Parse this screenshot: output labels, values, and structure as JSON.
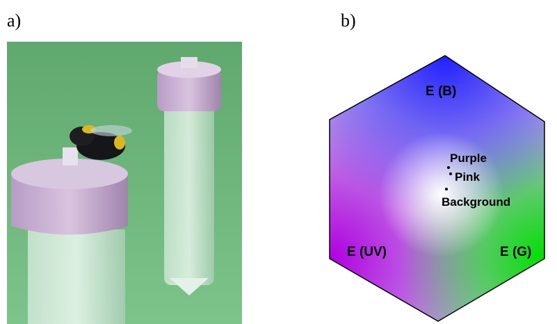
{
  "panels": [
    {
      "label": "a)"
    },
    {
      "label": "b)",
      "axes": [
        "E (B)",
        "E (UV)",
        "E (G)"
      ],
      "points": [
        "Purple",
        "Pink",
        "Background"
      ]
    }
  ]
}
